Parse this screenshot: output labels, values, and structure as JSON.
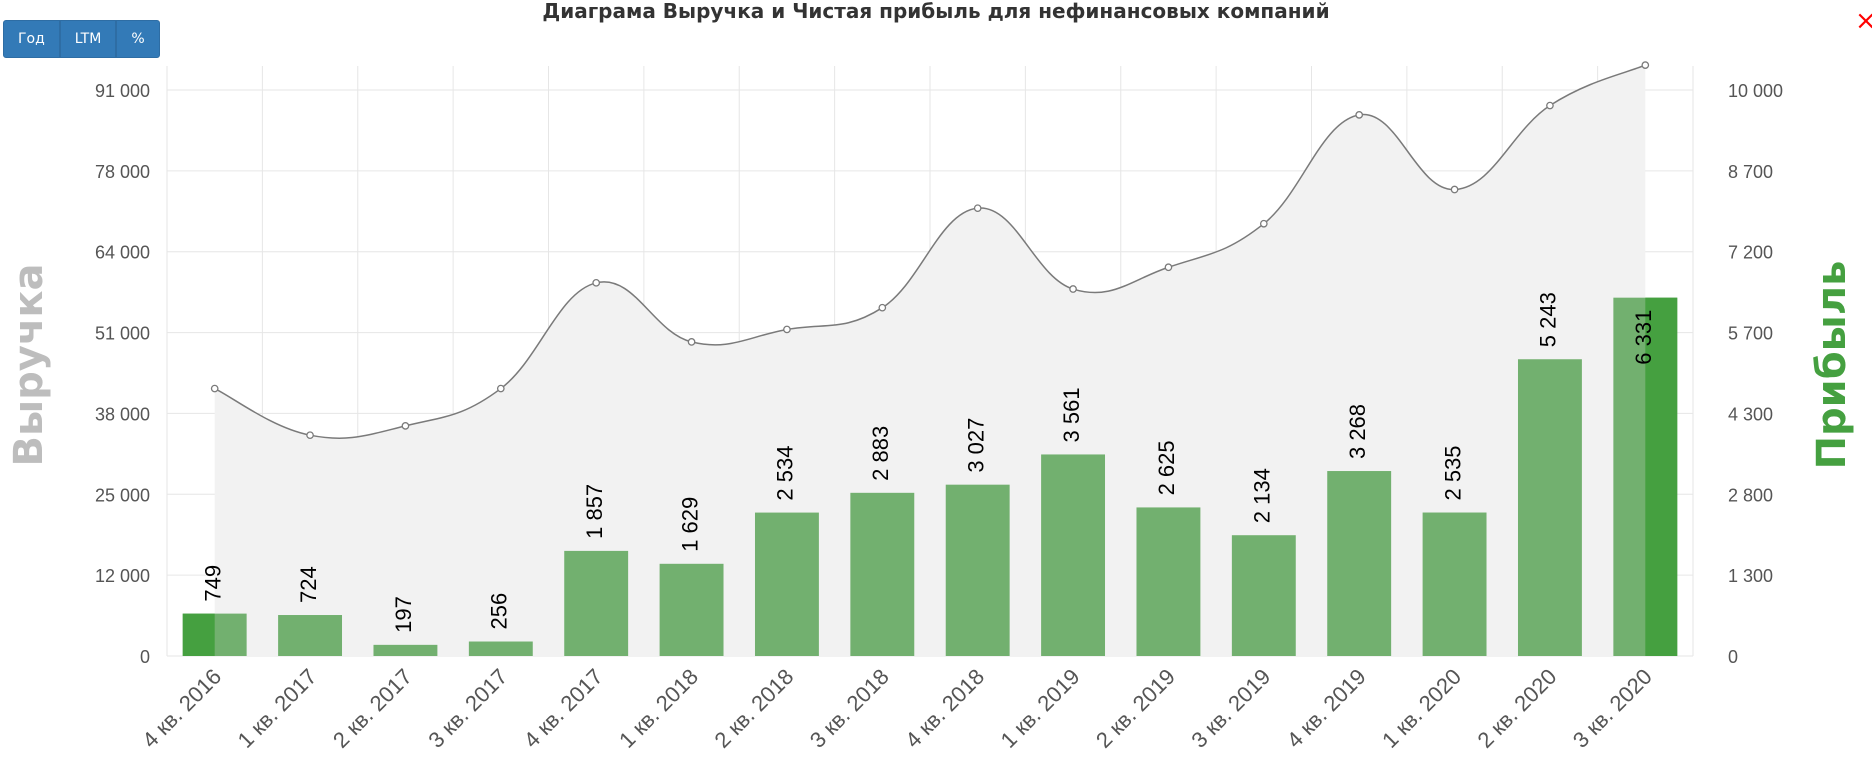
{
  "title": "Диаграма Выручка и Чистая прибыль для нефинансовых компаний",
  "buttons": [
    {
      "label": "Год"
    },
    {
      "label": "LTM"
    },
    {
      "label": "%"
    }
  ],
  "close_icon": "×",
  "colors": {
    "bar": "#72b06f",
    "bar_highlight": "#45a040",
    "line": "#7a7a7a",
    "area": "#f2f2f2",
    "revenue_axis_title": "#bdbdbd",
    "profit_axis_title": "#45a040",
    "button": "#337ab7"
  },
  "chart_data": {
    "type": "bar",
    "categories": [
      "4 кв. 2016",
      "1 кв. 2017",
      "2 кв. 2017",
      "3 кв. 2017",
      "4 кв. 2017",
      "1 кв. 2018",
      "2 кв. 2018",
      "3 кв. 2018",
      "4 кв. 2018",
      "1 кв. 2019",
      "2 кв. 2019",
      "3 кв. 2019",
      "4 кв. 2019",
      "1 кв. 2020",
      "2 кв. 2020",
      "3 кв. 2020"
    ],
    "series": [
      {
        "name": "Выручка",
        "chart_type": "area-spline",
        "axis": "left",
        "values": [
          43000,
          35500,
          37000,
          43000,
          60000,
          50500,
          52500,
          56000,
          72000,
          59000,
          62500,
          69500,
          87000,
          75000,
          88500,
          95000
        ]
      },
      {
        "name": "Прибыль",
        "chart_type": "bar",
        "axis": "right",
        "values": [
          749,
          724,
          197,
          256,
          1857,
          1629,
          2534,
          2883,
          3027,
          3561,
          2625,
          2134,
          3268,
          2535,
          5243,
          6331
        ],
        "labels": [
          "749",
          "724",
          "197",
          "256",
          "1 857",
          "1 629",
          "2 534",
          "2 883",
          "3 027",
          "3 561",
          "2 625",
          "2 134",
          "3 268",
          "2 535",
          "5 243",
          "6 331"
        ]
      }
    ],
    "left_axis": {
      "title": "Выручка",
      "ticks": [
        "0",
        "12 000",
        "25 000",
        "38 000",
        "51 000",
        "64 000",
        "78 000",
        "91 000"
      ],
      "ylim": [
        0,
        91000
      ]
    },
    "right_axis": {
      "title": "Прибыль",
      "ticks": [
        "0",
        "1 300",
        "2 800",
        "4 300",
        "5 700",
        "7 200",
        "8 700",
        "10 000"
      ],
      "ylim": [
        0,
        10000
      ]
    },
    "grid": true,
    "legend": "none"
  }
}
